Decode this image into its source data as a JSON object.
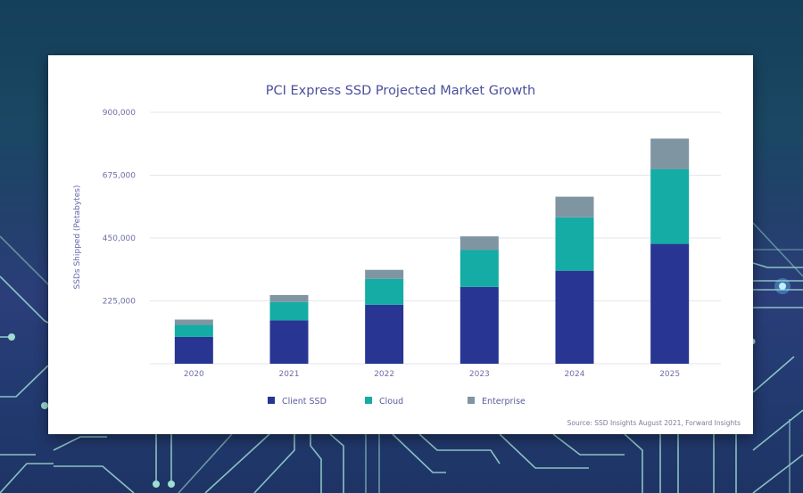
{
  "colors": {
    "client_ssd": "#283593",
    "cloud": "#14aca4",
    "enterprise": "#7f95a2",
    "circuit": "#9fdcd2"
  },
  "chart_data": {
    "type": "bar",
    "stacked": true,
    "title": "PCI Express SSD Projected Market Growth",
    "xlabel": "",
    "ylabel": "SSDs Shipped (Petabytes)",
    "ylim": [
      0,
      900000
    ],
    "yticks": [
      0,
      225000,
      450000,
      675000,
      900000
    ],
    "ytick_labels": [
      "",
      "225,000",
      "450,000",
      "675,000",
      "900,000"
    ],
    "grid": true,
    "legend_position": "bottom",
    "categories": [
      "2020",
      "2021",
      "2022",
      "2023",
      "2024",
      "2025"
    ],
    "series": [
      {
        "name": "Client SSD",
        "color": "#283593",
        "values": [
          96000,
          155000,
          211000,
          275000,
          333000,
          429000
        ]
      },
      {
        "name": "Cloud",
        "color": "#14aca4",
        "values": [
          43000,
          66000,
          93000,
          132000,
          191000,
          268000
        ]
      },
      {
        "name": "Enterprise",
        "color": "#7f95a2",
        "values": [
          19000,
          25000,
          32000,
          49000,
          74000,
          109000
        ]
      }
    ],
    "source": "Source: SSD Insights August 2021, Forward Insights"
  }
}
